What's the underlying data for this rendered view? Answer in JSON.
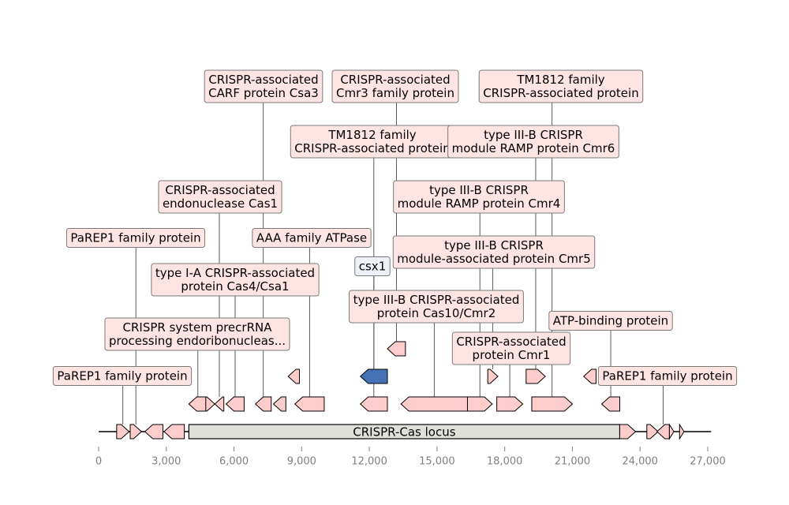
{
  "chart_data": {
    "type": "genome-map",
    "x_range": [
      0,
      27000
    ],
    "x_ticks": [
      0,
      3000,
      6000,
      9000,
      12000,
      15000,
      18000,
      21000,
      24000,
      27000
    ],
    "x_tick_labels": [
      "0",
      "3,000",
      "6,000",
      "9,000",
      "12,000",
      "15,000",
      "18,000",
      "21,000",
      "24,000",
      "27,000"
    ],
    "sequence_end": 27150,
    "colors": {
      "gene_fill": "#ffcccc",
      "highlight_fill": "#4472b4",
      "locus_fill": "#e0e0da",
      "label_fill": "#ffe4e4",
      "highlight_label_fill": "#eef2f8",
      "label_border": "#7a7a7a",
      "leader_line": "#333333",
      "axis_text": "#808080"
    },
    "region": {
      "label": "CRISPR-Cas locus",
      "start": 4000,
      "end": 23100
    },
    "features": [
      {
        "start": 800,
        "end": 1350,
        "strand": 1,
        "row": 0,
        "label": "PaREP1 family protein"
      },
      {
        "start": 1400,
        "end": 1900,
        "strand": 1,
        "row": 0,
        "label": "PaREP1 family protein"
      },
      {
        "start": 2050,
        "end": 2850,
        "strand": -1,
        "row": 0
      },
      {
        "start": 2900,
        "end": 3800,
        "strand": -1,
        "row": 0
      },
      {
        "start": 4000,
        "end": 4800,
        "strand": -1,
        "row": 1,
        "label": "CRISPR system precrRNA processing endoribonucleas..."
      },
      {
        "start": 4750,
        "end": 5150,
        "strand": 1,
        "row": 1
      },
      {
        "start": 5150,
        "end": 5550,
        "strand": -1,
        "row": 1,
        "label": "CRISPR-associated endonuclease Cas1"
      },
      {
        "start": 5650,
        "end": 6450,
        "strand": -1,
        "row": 1,
        "label": "type I-A CRISPR-associated protein Cas4/Csa1"
      },
      {
        "start": 6950,
        "end": 7650,
        "strand": -1,
        "row": 1,
        "label": "CRISPR-associated CARF protein Csa3"
      },
      {
        "start": 7750,
        "end": 8300,
        "strand": -1,
        "row": 1
      },
      {
        "start": 8700,
        "end": 10000,
        "strand": -1,
        "row": 1,
        "label": "AAA family ATPase"
      },
      {
        "start": 11600,
        "end": 12800,
        "strand": -1,
        "row": 1,
        "label": "TM1812 family CRISPR-associated protein"
      },
      {
        "start": 13400,
        "end": 16350,
        "strand": -1,
        "row": 1,
        "label": "type III-B CRISPR-associated protein Cas10/Cmr2"
      },
      {
        "start": 16350,
        "end": 17450,
        "strand": 1,
        "row": 1,
        "label": "type III-B CRISPR module RAMP protein Cmr4"
      },
      {
        "start": 17650,
        "end": 18800,
        "strand": 1,
        "row": 1,
        "label": "CRISPR-associated protein Cmr1"
      },
      {
        "start": 19200,
        "end": 21000,
        "strand": 1,
        "row": 1,
        "label": "TM1812 family CRISPR-associated protein"
      },
      {
        "start": 22300,
        "end": 23100,
        "strand": -1,
        "row": 1,
        "label": "ATP-binding protein"
      },
      {
        "start": 8400,
        "end": 8900,
        "strand": -1,
        "row": 2
      },
      {
        "start": 11600,
        "end": 12800,
        "strand": -1,
        "row": 2,
        "highlight": true,
        "label": "csx1"
      },
      {
        "start": 12800,
        "end": 13600,
        "strand": -1,
        "row": 3,
        "label": "CRISPR-associated Cmr3 family protein"
      },
      {
        "start": 17250,
        "end": 17700,
        "strand": 1,
        "row": 2,
        "label": "type III-B CRISPR module-associated protein Cmr5"
      },
      {
        "start": 18950,
        "end": 19800,
        "strand": 1,
        "row": 2,
        "label": "type III-B CRISPR module RAMP protein Cmr6"
      },
      {
        "start": 21500,
        "end": 22050,
        "strand": -1,
        "row": 2
      },
      {
        "start": 23100,
        "end": 23800,
        "strand": 1,
        "row": 0
      },
      {
        "start": 24300,
        "end": 24800,
        "strand": 1,
        "row": 0
      },
      {
        "start": 24750,
        "end": 25300,
        "strand": -1,
        "row": 0,
        "label": "PaREP1 family protein"
      },
      {
        "start": 25300,
        "end": 25500,
        "strand": 1,
        "row": 0
      },
      {
        "start": 25750,
        "end": 25950,
        "strand": 1,
        "row": 0
      }
    ]
  }
}
